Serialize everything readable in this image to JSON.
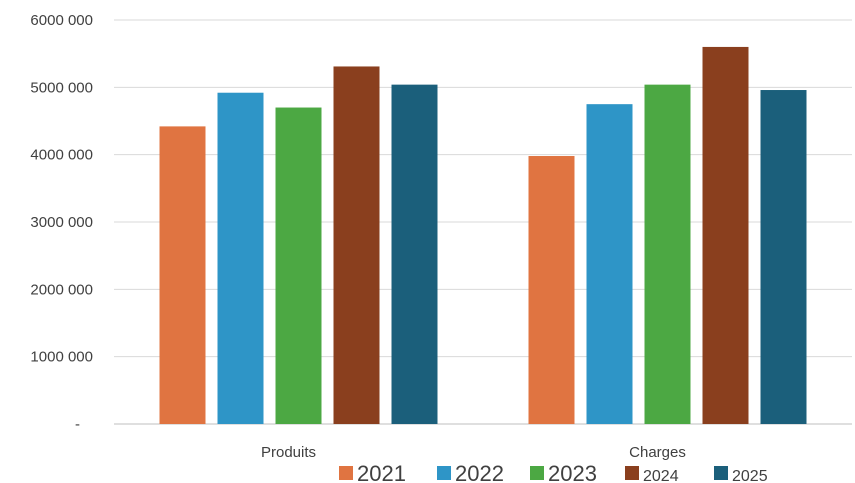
{
  "chart_data": {
    "type": "bar",
    "categories": [
      "Produits",
      "Charges"
    ],
    "series": [
      {
        "name": "2021",
        "color": "#E07441",
        "values": [
          4420000,
          3980000
        ]
      },
      {
        "name": "2022",
        "color": "#2E95C7",
        "values": [
          4920000,
          4750000
        ]
      },
      {
        "name": "2023",
        "color": "#4CA843",
        "values": [
          4700000,
          5040000
        ]
      },
      {
        "name": "2024",
        "color": "#8A3F1E",
        "values": [
          5310000,
          5600000
        ]
      },
      {
        "name": "2025",
        "color": "#1B5F7B",
        "values": [
          5040000,
          4960000
        ]
      }
    ],
    "yticks": [
      0,
      1000000,
      2000000,
      3000000,
      4000000,
      5000000,
      6000000
    ],
    "ytick_labels": [
      "-",
      "1000 000",
      "2000 000",
      "3000 000",
      "4000 000",
      "5000 000",
      "6000 000"
    ],
    "ylim": [
      0,
      6000000
    ],
    "title": "",
    "xlabel": "",
    "ylabel": "",
    "grid": true,
    "legend": "bottom"
  }
}
